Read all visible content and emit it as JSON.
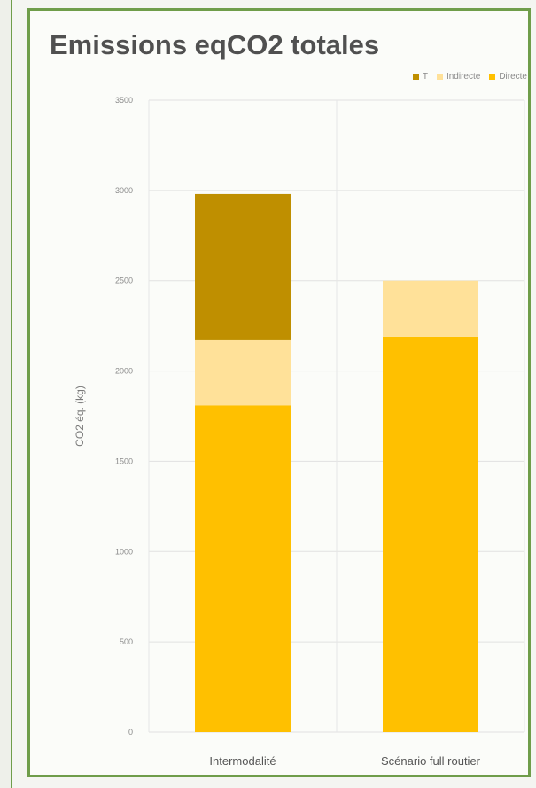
{
  "chart_data": {
    "type": "bar",
    "stacked": true,
    "title": "Emissions eqCO2 totales",
    "ylabel": "CO2 éq. (kg)",
    "xlabel": "",
    "ylim": [
      0,
      3500
    ],
    "yticks": [
      0,
      500,
      1000,
      1500,
      2000,
      2500,
      3000,
      3500
    ],
    "categories": [
      "Intermodalité",
      "Scénario full routier"
    ],
    "series": [
      {
        "name": "Directe",
        "color": "#ffc000",
        "values": [
          1810,
          2190
        ]
      },
      {
        "name": "Indirecte",
        "color": "#ffe199",
        "values": [
          360,
          310
        ]
      },
      {
        "name": "T",
        "color": "#bf8f00",
        "values": [
          810,
          0
        ]
      }
    ],
    "legend_position": "top-right",
    "grid": true
  }
}
